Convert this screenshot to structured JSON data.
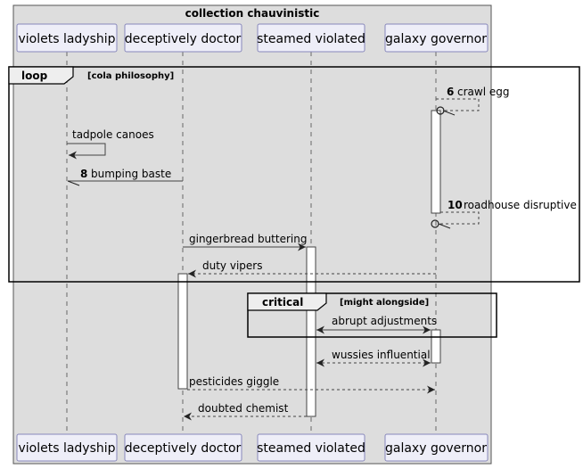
{
  "box": {
    "title": "collection chauvinistic"
  },
  "participants": [
    {
      "id": "violets",
      "label": "violets ladyship"
    },
    {
      "id": "doctor",
      "label": "deceptively doctor"
    },
    {
      "id": "steamed",
      "label": "steamed violated"
    },
    {
      "id": "galaxy",
      "label": "galaxy governor"
    }
  ],
  "frames": {
    "loop": {
      "keyword": "loop",
      "condition": "[cola philosophy]"
    },
    "critical": {
      "keyword": "critical",
      "condition": "[might alongside]"
    }
  },
  "messages": {
    "crawl_egg": {
      "number": "6",
      "text": "crawl egg"
    },
    "tadpole_canoes": {
      "text": "tadpole canoes"
    },
    "bumping_baste": {
      "number": "8",
      "text": "bumping baste"
    },
    "roadhouse_disruptive": {
      "number": "10",
      "text": "roadhouse disruptive"
    },
    "gingerbread_buttering": {
      "text": "gingerbread buttering"
    },
    "duty_vipers": {
      "text": "duty vipers"
    },
    "abrupt_adjustments": {
      "text": "abrupt adjustments"
    },
    "wussies_influential": {
      "text": "wussies influential"
    },
    "pesticides_giggle": {
      "text": "pesticides giggle"
    },
    "doubted_chemist": {
      "text": "doubted chemist"
    }
  },
  "colors": {
    "box_fill": "#dddddd",
    "participant_fill": "#eeeef8",
    "participant_border": "#8888bb",
    "line": "#444444"
  }
}
